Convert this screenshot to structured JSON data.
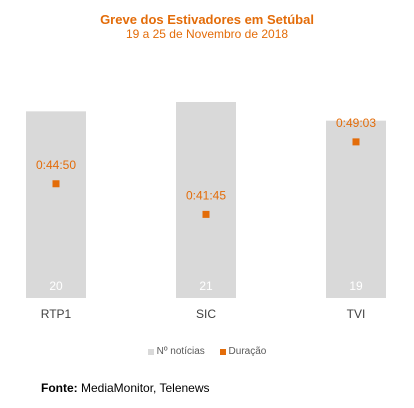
{
  "chart_data": {
    "type": "bar",
    "title": "Greve dos Estivadores em Setúbal",
    "subtitle": "19 a 25 de Novembro de 2018",
    "categories": [
      "RTP1",
      "SIC",
      "TVI"
    ],
    "series": [
      {
        "name": "Nº notícias",
        "values": [
          20,
          21,
          19
        ],
        "color": "#d9d9d9",
        "kind": "bar"
      },
      {
        "name": "Duração",
        "values": [
          "0:44:50",
          "0:41:45",
          "0:49:03"
        ],
        "seconds": [
          2690,
          2505,
          2943
        ],
        "color": "#e36c09",
        "kind": "marker"
      }
    ],
    "legend_position": "bottom",
    "grid": false
  },
  "source": {
    "label": "Fonte:",
    "text": "MediaMonitor, Telenews"
  }
}
